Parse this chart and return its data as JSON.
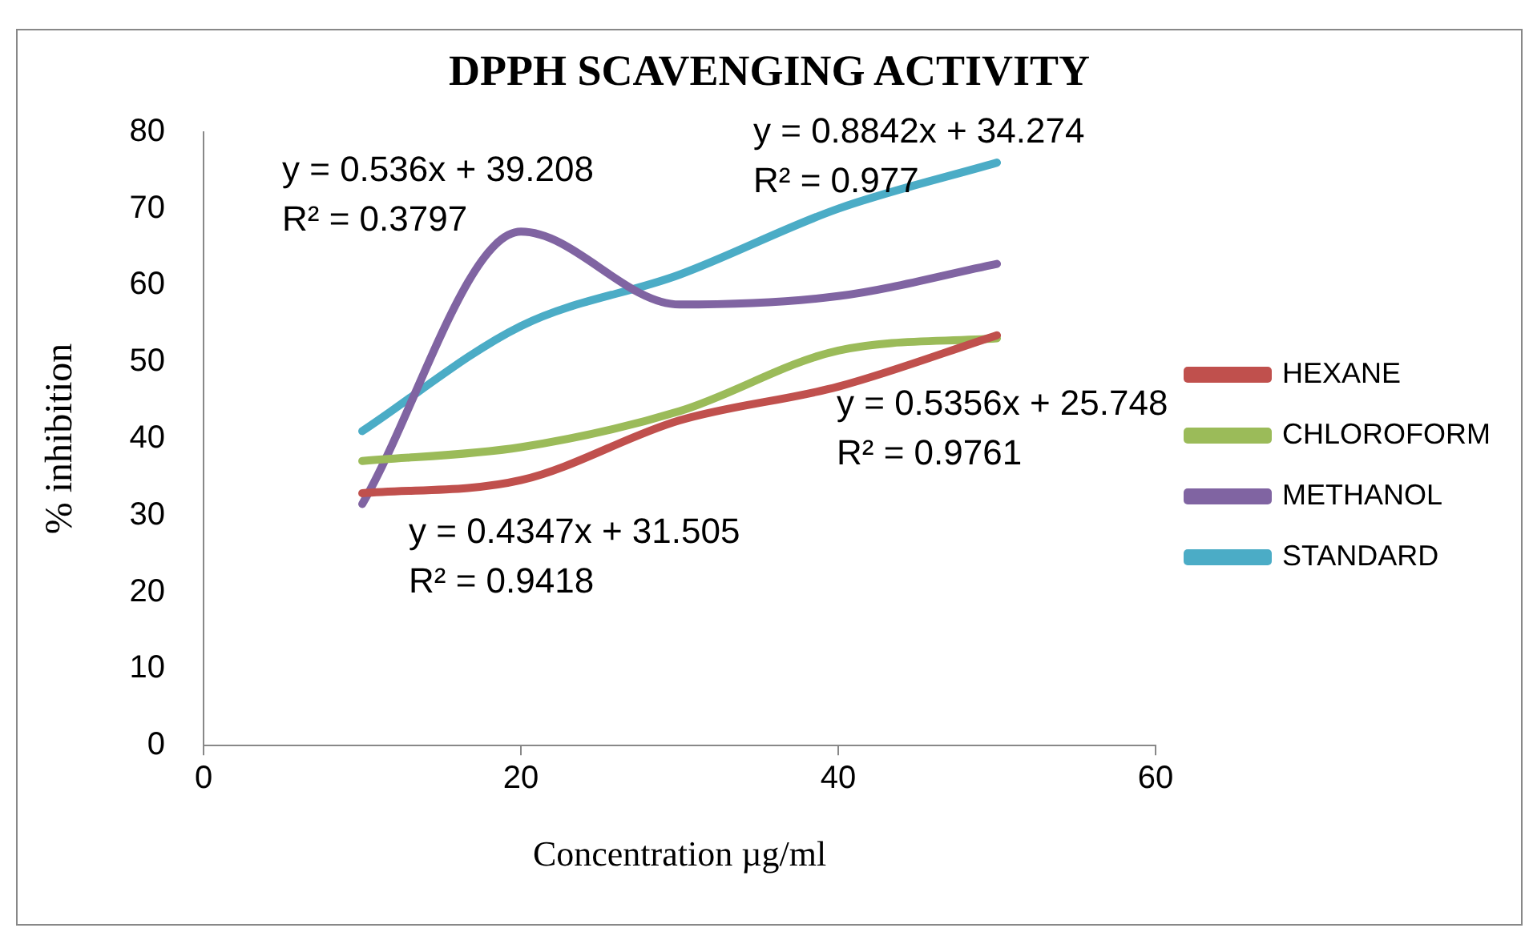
{
  "chart_data": {
    "type": "line",
    "title": "DPPH SCAVENGING ACTIVITY",
    "xlabel": "Concentration µg/ml",
    "ylabel": "% inhibition",
    "x": [
      10,
      20,
      30,
      40,
      50
    ],
    "series": [
      {
        "name": "HEXANE",
        "color": "#c0504d",
        "values": [
          32.9,
          34.6,
          42.4,
          46.8,
          53.5
        ]
      },
      {
        "name": "CHLOROFORM",
        "color": "#9bbb59",
        "values": [
          37.1,
          38.9,
          43.6,
          51.5,
          53.1
        ]
      },
      {
        "name": "METHANOL",
        "color": "#8064a2",
        "values": [
          31.5,
          67,
          57.5,
          58.6,
          62.8
        ]
      },
      {
        "name": "STANDARD",
        "color": "#4bacc6",
        "values": [
          41,
          54.7,
          61.4,
          70,
          76
        ]
      }
    ],
    "xlim": [
      0,
      60
    ],
    "xticks": [
      0,
      20,
      40,
      60
    ],
    "ylim": [
      0,
      80
    ],
    "yticks": [
      0,
      10,
      20,
      30,
      40,
      50,
      60,
      70,
      80
    ],
    "grid": false,
    "legend": "right",
    "marker": "none",
    "line_style": "solid",
    "annotations": [
      "y = 0.536x + 39.208\nR² = 0.3797",
      "y = 0.8842x + 34.274\nR² = 0.977",
      "y = 0.5356x + 25.748\nR² = 0.9761",
      "y = 0.4347x + 31.505\nR² = 0.9418"
    ]
  }
}
